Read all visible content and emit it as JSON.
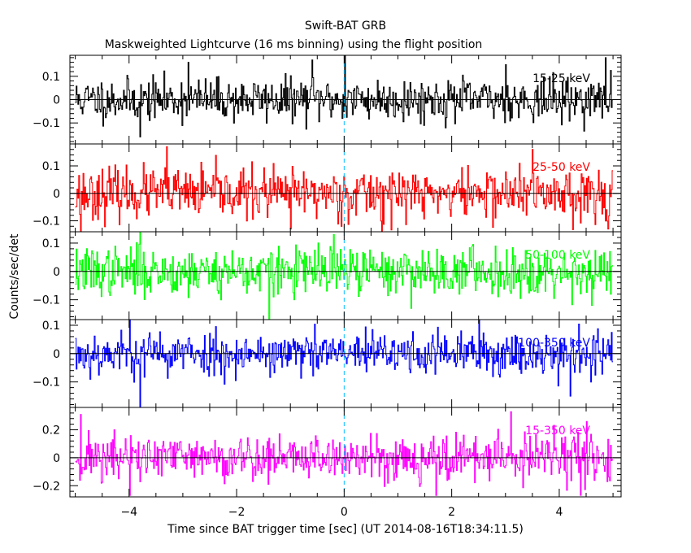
{
  "title": "Swift-BAT GRB",
  "subtitle": "Maskweighted Lightcurve (16 ms binning) using the flight position",
  "xlabel": "Time since BAT trigger time [sec] (UT 2014-08-16T18:34:11.5)",
  "ylabel": "Counts/sec/det",
  "chart_data": {
    "type": "line",
    "title": "Swift-BAT GRB",
    "subtitle": "Maskweighted Lightcurve (16 ms binning) using the flight position",
    "xlabel": "Time since BAT trigger time [sec] (UT 2014-08-16T18:34:11.5)",
    "ylabel": "Counts/sec/det",
    "xlim": [
      -5.1,
      5.15
    ],
    "x_ticks": [
      -4,
      -2,
      0,
      2,
      4
    ],
    "x_tick_labels": [
      "−4",
      "−2",
      "0",
      "2",
      "4"
    ],
    "bin_size_sec": 0.016,
    "x_range_data": [
      -5.0,
      4.98
    ],
    "trigger_marker_x": 0,
    "panels": [
      {
        "name": "15-25 keV",
        "color": "#000000",
        "ylim": [
          -0.19,
          0.19
        ],
        "y_ticks": [
          0.1,
          0,
          -0.1
        ],
        "y_tick_labels": [
          "0.1",
          "0",
          "−0.1"
        ],
        "noise_sigma": 0.045,
        "seed": 11,
        "spikes": [
          [
            -3.8,
            -0.16
          ],
          [
            -2.9,
            0.16
          ],
          [
            0.0,
            0.19
          ],
          [
            -0.6,
            0.17
          ],
          [
            3.0,
            0.15
          ],
          [
            4.85,
            0.18
          ]
        ]
      },
      {
        "name": "25-50 keV",
        "color": "#ff0000",
        "ylim": [
          -0.14,
          0.18
        ],
        "y_ticks": [
          0.1,
          0,
          -0.1
        ],
        "y_tick_labels": [
          "0.1",
          "0",
          "−0.1"
        ],
        "noise_sigma": 0.045,
        "seed": 23,
        "spikes": [
          [
            -4.9,
            -0.14
          ],
          [
            -1.0,
            -0.13
          ],
          [
            0.7,
            -0.14
          ],
          [
            4.9,
            -0.13
          ],
          [
            -3.3,
            0.17
          ],
          [
            3.5,
            0.16
          ]
        ]
      },
      {
        "name": "50-100 keV",
        "color": "#00ff00",
        "ylim": [
          -0.17,
          0.14
        ],
        "y_ticks": [
          0.1,
          0,
          -0.1
        ],
        "y_tick_labels": [
          "0.1",
          "0",
          "−0.1"
        ],
        "noise_sigma": 0.042,
        "seed": 37,
        "spikes": [
          [
            -1.4,
            -0.17
          ],
          [
            -3.8,
            0.14
          ],
          [
            -0.2,
            0.13
          ],
          [
            4.6,
            -0.12
          ]
        ]
      },
      {
        "name": "100-350 keV",
        "color": "#0000ff",
        "ylim": [
          -0.19,
          0.12
        ],
        "y_ticks": [
          0.1,
          0,
          -0.1
        ],
        "y_tick_labels": [
          "0.1",
          "0",
          "−0.1"
        ],
        "noise_sigma": 0.038,
        "seed": 53,
        "spikes": [
          [
            -3.8,
            -0.19
          ],
          [
            4.2,
            -0.15
          ],
          [
            -4.0,
            0.12
          ],
          [
            2.5,
            0.12
          ]
        ]
      },
      {
        "name": "15-350 keV",
        "color": "#ff00ff",
        "ylim": [
          -0.28,
          0.36
        ],
        "y_ticks": [
          0.2,
          0,
          -0.2
        ],
        "y_tick_labels": [
          "0.2",
          "0",
          "−0.2"
        ],
        "noise_sigma": 0.085,
        "seed": 71,
        "spikes": [
          [
            3.1,
            0.33
          ],
          [
            -4.9,
            0.31
          ],
          [
            -4.0,
            -0.27
          ],
          [
            1.7,
            -0.27
          ],
          [
            4.5,
            0.26
          ]
        ]
      }
    ]
  }
}
